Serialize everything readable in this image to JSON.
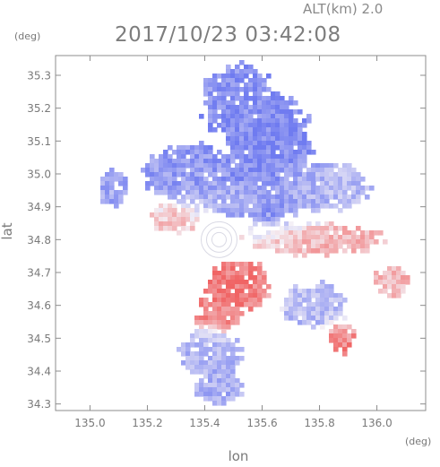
{
  "header": {
    "altitude_label": "ALT(km)  2.0",
    "timestamp": "2017/10/23 03:42:08"
  },
  "chart_data": {
    "type": "heatmap",
    "title": "2017/10/23 03:42:08",
    "subtitle": "ALT(km)  2.0",
    "xlabel": "lon",
    "ylabel": "lat",
    "x_unit": "(deg)",
    "y_unit": "(deg)",
    "xlim": [
      134.88,
      136.17
    ],
    "ylim": [
      34.28,
      35.36
    ],
    "x_ticks": [
      135.0,
      135.2,
      135.4,
      135.6,
      135.8,
      136.0
    ],
    "x_tick_labels": [
      "135.0",
      "135.2",
      "135.4",
      "135.6",
      "135.8",
      "136.0"
    ],
    "y_ticks": [
      34.3,
      34.4,
      34.5,
      34.6,
      34.7,
      34.8,
      34.9,
      35.0,
      35.1,
      35.2,
      35.3
    ],
    "y_tick_labels": [
      "34.3",
      "34.4",
      "34.5",
      "34.6",
      "34.7",
      "34.8",
      "34.9",
      "35.0",
      "35.1",
      "35.2",
      "35.3"
    ],
    "grid": false,
    "colors": {
      "approaching": "#6f7bf0",
      "receding": "#f06464",
      "neutral": "#f4f0f6"
    },
    "regions": [
      {
        "lon": 135.62,
        "lat": 35.05,
        "r_lon": 0.16,
        "r_lat": 0.22,
        "value": -0.9
      },
      {
        "lon": 135.52,
        "lat": 35.22,
        "r_lon": 0.14,
        "r_lat": 0.12,
        "value": -0.75
      },
      {
        "lon": 135.35,
        "lat": 35.0,
        "r_lon": 0.16,
        "r_lat": 0.1,
        "value": -0.7
      },
      {
        "lon": 135.78,
        "lat": 34.96,
        "r_lon": 0.2,
        "r_lat": 0.08,
        "value": -0.45
      },
      {
        "lon": 135.5,
        "lat": 34.92,
        "r_lon": 0.12,
        "r_lat": 0.05,
        "value": -0.4
      },
      {
        "lon": 135.3,
        "lat": 34.87,
        "r_lon": 0.09,
        "r_lat": 0.05,
        "value": 0.35
      },
      {
        "lon": 135.78,
        "lat": 34.8,
        "r_lon": 0.25,
        "r_lat": 0.05,
        "value": 0.45
      },
      {
        "lon": 135.52,
        "lat": 34.66,
        "r_lon": 0.12,
        "r_lat": 0.08,
        "value": 0.85
      },
      {
        "lon": 135.45,
        "lat": 34.58,
        "r_lon": 0.09,
        "r_lat": 0.06,
        "value": 0.8
      },
      {
        "lon": 135.78,
        "lat": 34.6,
        "r_lon": 0.12,
        "r_lat": 0.07,
        "value": -0.45
      },
      {
        "lon": 135.87,
        "lat": 34.5,
        "r_lon": 0.05,
        "r_lat": 0.05,
        "value": 0.75
      },
      {
        "lon": 135.42,
        "lat": 34.45,
        "r_lon": 0.11,
        "r_lat": 0.08,
        "value": -0.5
      },
      {
        "lon": 135.45,
        "lat": 34.35,
        "r_lon": 0.09,
        "r_lat": 0.05,
        "value": -0.55
      },
      {
        "lon": 135.08,
        "lat": 34.96,
        "r_lon": 0.05,
        "r_lat": 0.06,
        "value": -0.6
      },
      {
        "lon": 136.05,
        "lat": 34.67,
        "r_lon": 0.06,
        "r_lat": 0.05,
        "value": 0.4
      }
    ]
  }
}
